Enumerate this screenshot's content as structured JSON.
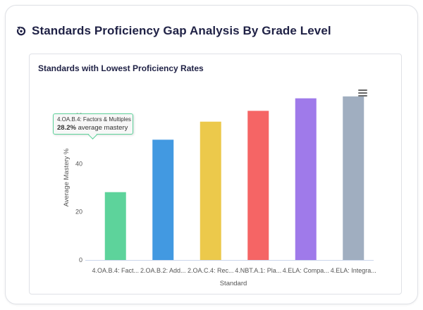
{
  "header": {
    "title": "Standards Proficiency Gap Analysis By Grade Level"
  },
  "chart_card": {
    "title": "Standards with Lowest Proficiency Rates"
  },
  "tooltip": {
    "label": "4.OA.B.4: Factors & Multiples",
    "value": "28.2%",
    "suffix": " average mastery"
  },
  "colors": {
    "title": "#1f2145",
    "bars": [
      "#5dd39b",
      "#4299e1",
      "#ecc94b",
      "#f56565",
      "#9f7aea",
      "#a0aec0"
    ]
  },
  "chart_data": {
    "type": "bar",
    "title": "Standards with Lowest Proficiency Rates",
    "xlabel": "Standard",
    "ylabel": "Average Mastery %",
    "ylim": [
      0,
      70
    ],
    "yticks": [
      0,
      20,
      40,
      60
    ],
    "grid": false,
    "categories": [
      "4.OA.B.4: Fact...",
      "2.OA.B.2: Add...",
      "2.OA.C.4: Rec...",
      "4.NBT.A.1: Pla...",
      "4.ELA: Compa...",
      "4.ELA: Integra..."
    ],
    "values": [
      28.2,
      50,
      57.5,
      62,
      67.2,
      68
    ]
  }
}
